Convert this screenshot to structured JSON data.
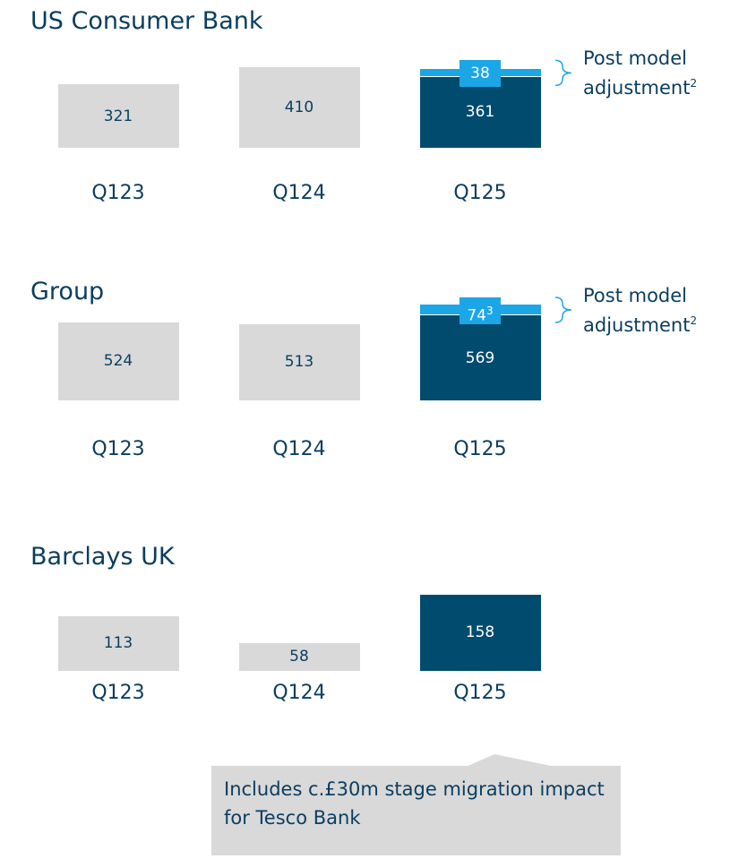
{
  "chart_data": [
    {
      "type": "bar",
      "title": "US Consumer Bank",
      "categories": [
        "Q123",
        "Q124",
        "Q125"
      ],
      "values": [
        321,
        410,
        361
      ],
      "colors": [
        "#d9d9d9",
        "#d9d9d9",
        "#004b6e"
      ],
      "ylim": [
        0,
        500
      ],
      "adjustment": {
        "name": "Post model adjustment",
        "footnote": "2",
        "value": 38,
        "color": "#1ba6e8"
      }
    },
    {
      "type": "bar",
      "title": "Group",
      "categories": [
        "Q123",
        "Q124",
        "Q125"
      ],
      "values": [
        524,
        513,
        569
      ],
      "colors": [
        "#d9d9d9",
        "#d9d9d9",
        "#004b6e"
      ],
      "ylim": [
        0,
        660
      ],
      "adjustment": {
        "name": "Post model adjustment",
        "footnote": "2",
        "value": 74,
        "value_footnote": "3",
        "color": "#1ba6e8"
      }
    },
    {
      "type": "bar",
      "title": "Barclays UK",
      "categories": [
        "Q123",
        "Q124",
        "Q125"
      ],
      "values": [
        113,
        58,
        158
      ],
      "colors": [
        "#d9d9d9",
        "#d9d9d9",
        "#004b6e"
      ],
      "ylim": [
        0,
        185
      ],
      "callout": "Includes c.£30m stage migration impact for Tesco Bank"
    }
  ]
}
